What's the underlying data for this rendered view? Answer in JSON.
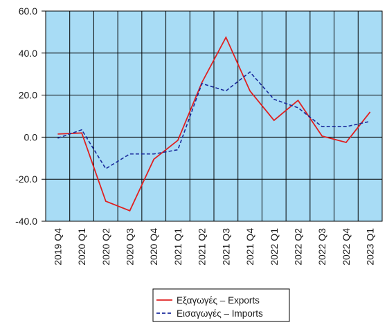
{
  "chart_data": {
    "type": "line",
    "categories": [
      "2019 Q4",
      "2020 Q1",
      "2020 Q2",
      "2020 Q3",
      "2020 Q4",
      "2021 Q1",
      "2021 Q2",
      "2021 Q3",
      "2021 Q4",
      "2022 Q1",
      "2022 Q2",
      "2022 Q3",
      "2022 Q4",
      "2023 Q1"
    ],
    "series": [
      {
        "name": "Εξαγωγές – Exports",
        "color": "#e02020",
        "dash": "solid",
        "values": [
          1.5,
          2.0,
          -30.5,
          -35.0,
          -10.5,
          -1.5,
          26.0,
          47.5,
          22.0,
          8.0,
          17.5,
          0.5,
          -2.5,
          12.0
        ]
      },
      {
        "name": "Εισαγωγές – Imports",
        "color": "#1a2a9c",
        "dash": "dashed",
        "values": [
          -0.5,
          3.5,
          -15.0,
          -8.0,
          -8.0,
          -6.0,
          25.5,
          22.0,
          31.0,
          18.0,
          14.0,
          5.0,
          5.0,
          7.5
        ]
      }
    ],
    "y_ticks": [
      "60.0",
      "40.0",
      "20.0",
      "0.0",
      "-20.0",
      "-40.0"
    ],
    "ylim": [
      -40,
      60
    ],
    "grid": true,
    "plot_background": "#a8dcf5",
    "legend_position": "bottom-center"
  }
}
